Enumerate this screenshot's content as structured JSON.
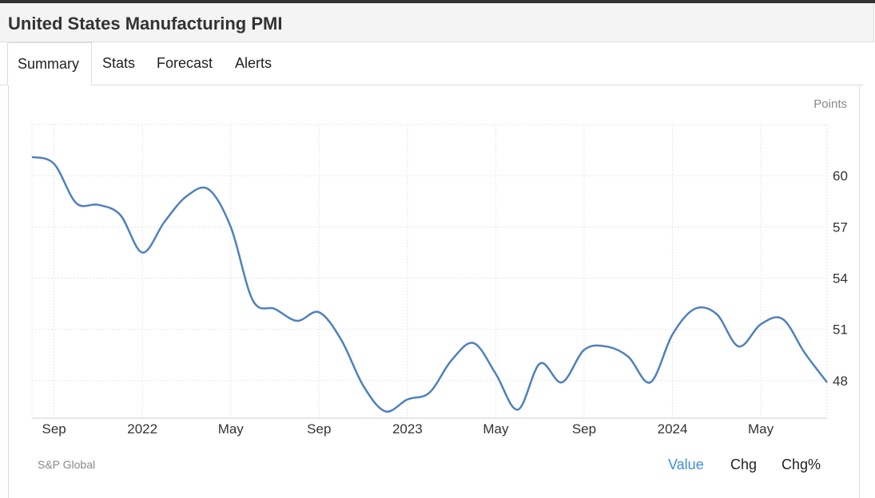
{
  "header": {
    "title": "United States Manufacturing PMI"
  },
  "tabs": [
    {
      "label": "Summary",
      "active": true
    },
    {
      "label": "Stats",
      "active": false
    },
    {
      "label": "Forecast",
      "active": false
    },
    {
      "label": "Alerts",
      "active": false
    }
  ],
  "footer": {
    "source": "S&P Global",
    "modes": [
      {
        "label": "Value",
        "active": true
      },
      {
        "label": "Chg",
        "active": false
      },
      {
        "label": "Chg%",
        "active": false
      }
    ]
  },
  "colors": {
    "line": "#4f81bd",
    "active_mode": "#3c8fd8",
    "grid": "#e6e6e6"
  },
  "chart_data": {
    "type": "line",
    "title": "United States Manufacturing PMI",
    "unit_label": "Points",
    "x": [
      "2021-08",
      "2021-09",
      "2021-10",
      "2021-11",
      "2021-12",
      "2022-01",
      "2022-02",
      "2022-03",
      "2022-04",
      "2022-05",
      "2022-06",
      "2022-07",
      "2022-08",
      "2022-09",
      "2022-10",
      "2022-11",
      "2022-12",
      "2023-01",
      "2023-02",
      "2023-03",
      "2023-04",
      "2023-05",
      "2023-06",
      "2023-07",
      "2023-08",
      "2023-09",
      "2023-10",
      "2023-11",
      "2023-12",
      "2024-01",
      "2024-02",
      "2024-03",
      "2024-04",
      "2024-05",
      "2024-06",
      "2024-07",
      "2024-08"
    ],
    "values": [
      61.1,
      60.7,
      58.4,
      58.3,
      57.7,
      55.5,
      57.3,
      58.8,
      59.2,
      57.0,
      52.7,
      52.2,
      51.5,
      52.0,
      50.4,
      47.7,
      46.2,
      46.9,
      47.3,
      49.2,
      50.2,
      48.4,
      46.3,
      49.0,
      47.9,
      49.8,
      50.0,
      49.4,
      47.9,
      50.7,
      52.2,
      51.9,
      50.0,
      51.3,
      51.6,
      49.6,
      47.9
    ],
    "y_ticks": [
      48,
      51,
      54,
      57,
      60
    ],
    "ylim": [
      45.8,
      63.0
    ],
    "x_ticks": [
      {
        "label": "Sep",
        "at": "2021-09"
      },
      {
        "label": "2022",
        "at": "2022-01"
      },
      {
        "label": "May",
        "at": "2022-05"
      },
      {
        "label": "Sep",
        "at": "2022-09"
      },
      {
        "label": "2023",
        "at": "2023-01"
      },
      {
        "label": "May",
        "at": "2023-05"
      },
      {
        "label": "Sep",
        "at": "2023-09"
      },
      {
        "label": "2024",
        "at": "2024-01"
      },
      {
        "label": "May",
        "at": "2024-05"
      }
    ],
    "grid": true,
    "y_axis_position": "right"
  }
}
